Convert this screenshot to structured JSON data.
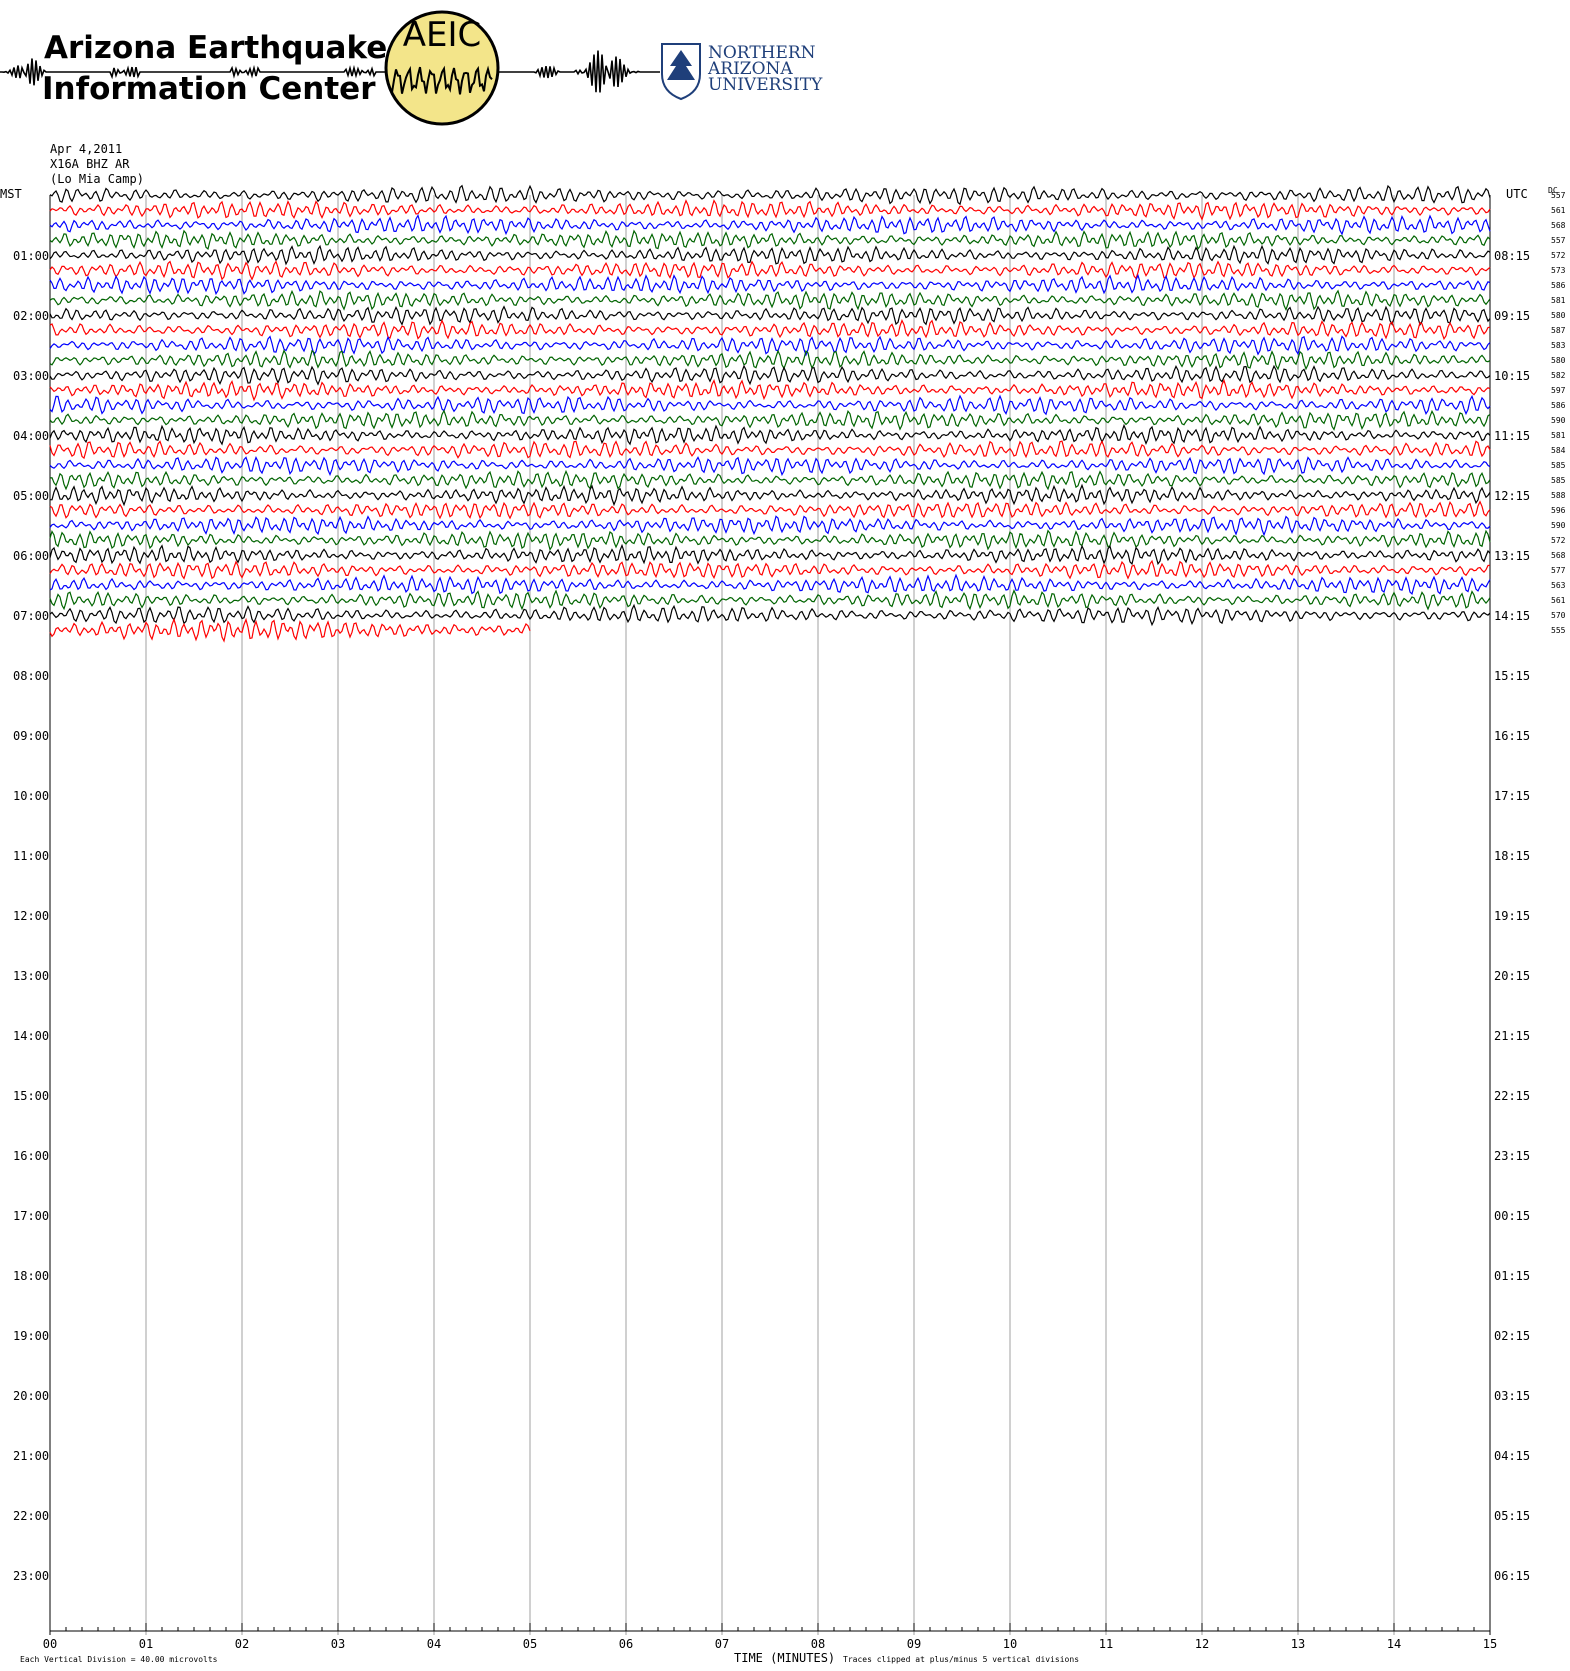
{
  "header": {
    "org_line1": "Arizona Earthquake",
    "org_line2": "Information Center",
    "seal_text": "AEIC",
    "nau_line1": "NORTHERN",
    "nau_line2": "ARIZONA",
    "nau_line3": "UNIVERSITY",
    "icon": "seismogram-logo-icon",
    "colors": {
      "seal_fill": "#f3e58a",
      "nau_blue": "#1f3f7a"
    }
  },
  "station": {
    "date": "Apr 4,2011",
    "channel": "X16A BHZ AR",
    "site": "(Lo Mia Camp)"
  },
  "chart_data": {
    "type": "line",
    "title": "",
    "left_axis_label": "MST",
    "right_axis_label": "UTC",
    "dc_label": "DC",
    "xlabel": "TIME (MINUTES)",
    "x_ticks": [
      "00",
      "01",
      "02",
      "03",
      "04",
      "05",
      "06",
      "07",
      "08",
      "09",
      "10",
      "11",
      "12",
      "13",
      "14",
      "15"
    ],
    "x_range_minutes": [
      0,
      15
    ],
    "mst_hours": [
      "01:00",
      "02:00",
      "03:00",
      "04:00",
      "05:00",
      "06:00",
      "07:00",
      "08:00",
      "09:00",
      "10:00",
      "11:00",
      "12:00",
      "13:00",
      "14:00",
      "15:00",
      "16:00",
      "17:00",
      "18:00",
      "19:00",
      "20:00",
      "21:00",
      "22:00",
      "23:00"
    ],
    "utc_hours": [
      "08:15",
      "09:15",
      "10:15",
      "11:15",
      "12:15",
      "13:15",
      "14:15",
      "15:15",
      "16:15",
      "17:15",
      "18:15",
      "19:15",
      "20:15",
      "21:15",
      "22:15",
      "23:15",
      "00:15",
      "01:15",
      "02:15",
      "03:15",
      "04:15",
      "05:15",
      "06:15"
    ],
    "trace_colors": [
      "#000000",
      "#ff0000",
      "#0000ff",
      "#006400"
    ],
    "trace_count": 30,
    "last_trace_end_minute": 5,
    "dc_values": [
      "557",
      "561",
      "568",
      "557",
      "572",
      "573",
      "586",
      "581",
      "580",
      "587",
      "583",
      "580",
      "582",
      "597",
      "586",
      "590",
      "581",
      "584",
      "585",
      "585",
      "588",
      "596",
      "590",
      "572",
      "568",
      "577",
      "563",
      "561",
      "570",
      "555"
    ],
    "footer_left": "Each Vertical Division =   40.00 microvolts",
    "footer_right": "Traces clipped at plus/minus 5 vertical divisions",
    "grid": "vertical lines each minute"
  }
}
